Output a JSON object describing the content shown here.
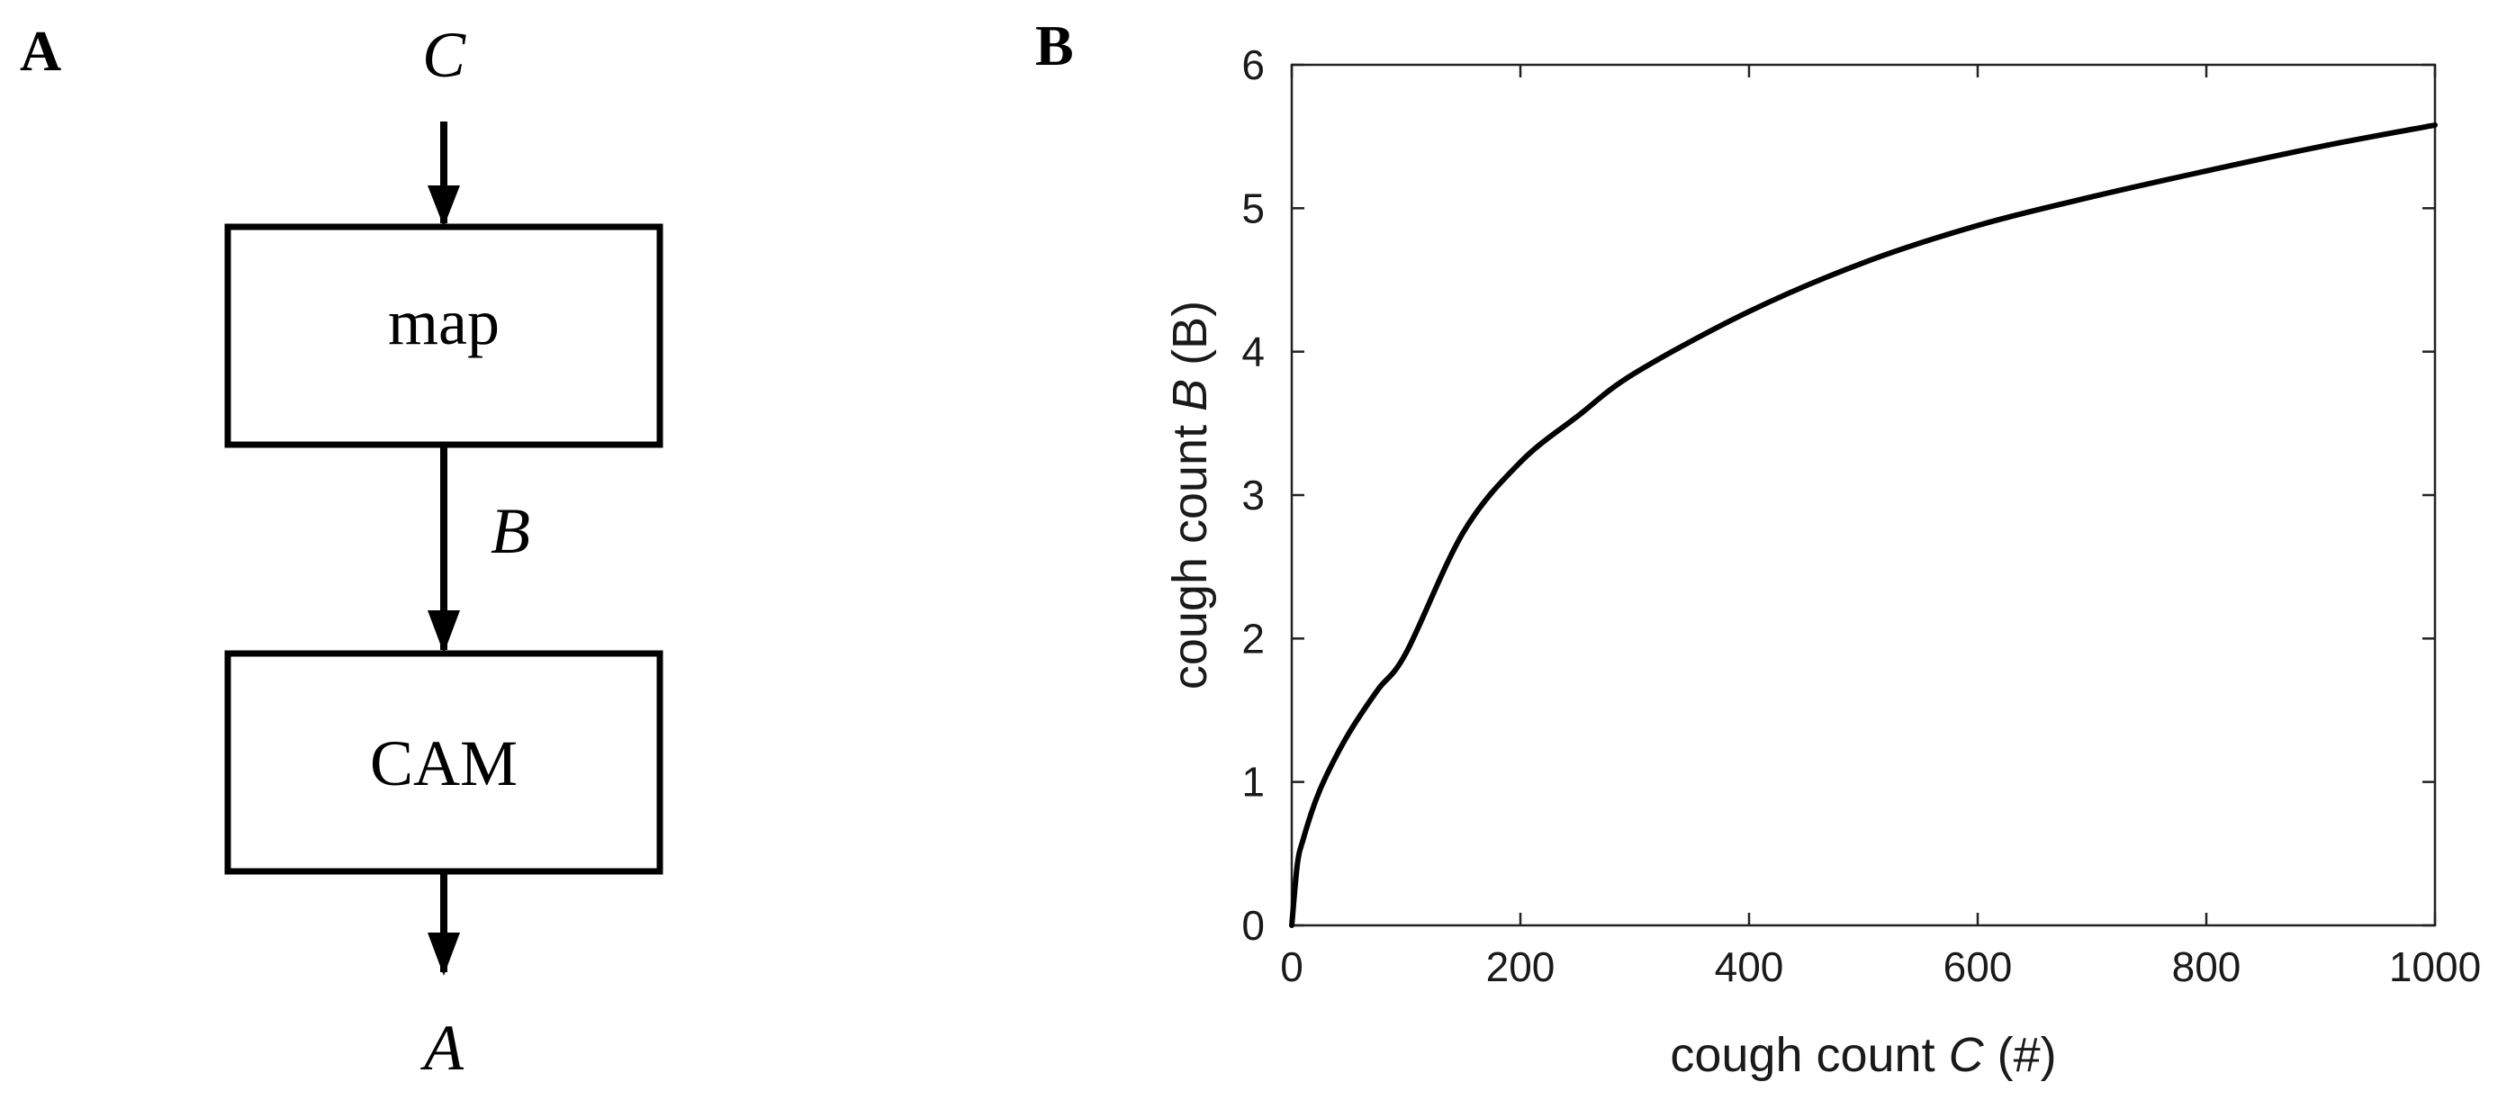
{
  "panel_a": {
    "letter": "A",
    "input_label": "C",
    "box1_label": "map",
    "mid_label": "B",
    "box2_label": "CAM",
    "output_label": "A"
  },
  "panel_b": {
    "letter": "B"
  },
  "chart_data": {
    "type": "line",
    "title": "",
    "xlabel_prefix": "cough count",
    "xlabel_var": "C",
    "xlabel_unit": "(#)",
    "ylabel_prefix": "cough count",
    "ylabel_var": "B",
    "ylabel_unit": "(B)",
    "xlim": [
      0,
      1000
    ],
    "ylim": [
      0,
      6
    ],
    "xticks": [
      0,
      200,
      400,
      600,
      800,
      1000
    ],
    "yticks": [
      0,
      1,
      2,
      3,
      4,
      5,
      6
    ],
    "grid": false,
    "series": [
      {
        "color": "#000000",
        "x": [
          0,
          5,
          10,
          20,
          30,
          50,
          75,
          100,
          150,
          200,
          250,
          300,
          400,
          500,
          600,
          700,
          800,
          900,
          1000
        ],
        "y": [
          0,
          0.43,
          0.6,
          0.85,
          1.04,
          1.34,
          1.64,
          1.9,
          2.74,
          3.23,
          3.55,
          3.85,
          4.28,
          4.62,
          4.88,
          5.08,
          5.26,
          5.43,
          5.58
        ]
      }
    ]
  }
}
